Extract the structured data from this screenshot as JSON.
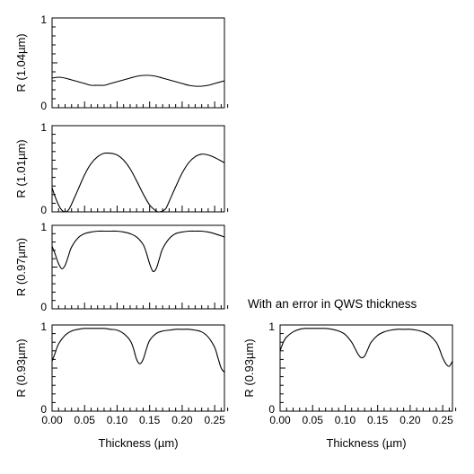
{
  "chart_data": [
    {
      "type": "line",
      "ylabel": "R (1.04µm)",
      "ylim": [
        0,
        1
      ],
      "xlim": [
        0,
        0.265
      ],
      "y_tick_labels": [
        "0",
        "1"
      ],
      "x_tick_labels": [],
      "xlabel": "",
      "grid": false,
      "series": [
        {
          "x": [
            0.0,
            0.01,
            0.02,
            0.03,
            0.04,
            0.05,
            0.06,
            0.07,
            0.08,
            0.09,
            0.1,
            0.11,
            0.12,
            0.13,
            0.14,
            0.15,
            0.16,
            0.17,
            0.18,
            0.19,
            0.2,
            0.21,
            0.22,
            0.23,
            0.24,
            0.25,
            0.265
          ],
          "y": [
            0.33,
            0.34,
            0.33,
            0.31,
            0.29,
            0.27,
            0.25,
            0.25,
            0.25,
            0.27,
            0.29,
            0.31,
            0.33,
            0.35,
            0.36,
            0.36,
            0.35,
            0.33,
            0.31,
            0.29,
            0.27,
            0.25,
            0.24,
            0.24,
            0.25,
            0.27,
            0.3
          ]
        }
      ]
    },
    {
      "type": "line",
      "ylabel": "R (1.01µm)",
      "ylim": [
        0,
        1
      ],
      "xlim": [
        0,
        0.265
      ],
      "y_tick_labels": [
        "0",
        "1"
      ],
      "x_tick_labels": [],
      "xlabel": "",
      "grid": false,
      "series": [
        {
          "x": [
            0.0,
            0.005,
            0.01,
            0.015,
            0.02,
            0.025,
            0.03,
            0.04,
            0.05,
            0.06,
            0.07,
            0.08,
            0.09,
            0.1,
            0.11,
            0.12,
            0.13,
            0.14,
            0.15,
            0.16,
            0.165,
            0.17,
            0.175,
            0.18,
            0.19,
            0.2,
            0.21,
            0.22,
            0.23,
            0.24,
            0.25,
            0.265
          ],
          "y": [
            0.28,
            0.17,
            0.08,
            0.02,
            0.0,
            0.02,
            0.09,
            0.26,
            0.43,
            0.56,
            0.64,
            0.68,
            0.68,
            0.66,
            0.6,
            0.5,
            0.36,
            0.21,
            0.08,
            0.01,
            0.0,
            0.01,
            0.04,
            0.12,
            0.29,
            0.45,
            0.57,
            0.64,
            0.67,
            0.66,
            0.63,
            0.57
          ]
        }
      ]
    },
    {
      "type": "line",
      "ylabel": "R (0.97µm)",
      "ylim": [
        0,
        1
      ],
      "xlim": [
        0,
        0.265
      ],
      "y_tick_labels": [
        "0",
        "1"
      ],
      "x_tick_labels": [],
      "xlabel": "",
      "grid": false,
      "series": [
        {
          "x": [
            0.0,
            0.005,
            0.01,
            0.015,
            0.02,
            0.025,
            0.03,
            0.04,
            0.05,
            0.06,
            0.07,
            0.08,
            0.09,
            0.1,
            0.11,
            0.12,
            0.13,
            0.14,
            0.145,
            0.15,
            0.155,
            0.16,
            0.165,
            0.17,
            0.18,
            0.19,
            0.2,
            0.21,
            0.22,
            0.23,
            0.24,
            0.25,
            0.265
          ],
          "y": [
            0.75,
            0.65,
            0.54,
            0.48,
            0.52,
            0.63,
            0.74,
            0.85,
            0.9,
            0.92,
            0.93,
            0.93,
            0.93,
            0.93,
            0.92,
            0.9,
            0.86,
            0.77,
            0.67,
            0.54,
            0.45,
            0.48,
            0.6,
            0.72,
            0.84,
            0.9,
            0.92,
            0.93,
            0.93,
            0.93,
            0.92,
            0.9,
            0.86
          ]
        }
      ]
    },
    {
      "type": "line",
      "ylabel": "R (0.93µm)",
      "ylim": [
        0,
        1
      ],
      "xlim": [
        0,
        0.265
      ],
      "y_tick_labels": [
        "0",
        "1"
      ],
      "x_tick_labels": [
        "0.00",
        "0.05",
        "0.10",
        "0.15",
        "0.20",
        "0.25"
      ],
      "xlabel": "Thickness (µm)",
      "grid": false,
      "series": [
        {
          "x": [
            0.0,
            0.005,
            0.01,
            0.02,
            0.03,
            0.04,
            0.05,
            0.06,
            0.07,
            0.08,
            0.09,
            0.1,
            0.11,
            0.12,
            0.125,
            0.13,
            0.135,
            0.14,
            0.145,
            0.15,
            0.16,
            0.17,
            0.18,
            0.19,
            0.2,
            0.21,
            0.22,
            0.23,
            0.24,
            0.25,
            0.255,
            0.26,
            0.265
          ],
          "y": [
            0.58,
            0.68,
            0.78,
            0.88,
            0.93,
            0.95,
            0.96,
            0.96,
            0.96,
            0.96,
            0.95,
            0.94,
            0.9,
            0.82,
            0.73,
            0.6,
            0.55,
            0.6,
            0.72,
            0.82,
            0.9,
            0.93,
            0.94,
            0.95,
            0.95,
            0.95,
            0.94,
            0.92,
            0.86,
            0.74,
            0.62,
            0.5,
            0.45
          ]
        }
      ]
    },
    {
      "type": "line",
      "ylabel": "R (0.93µm)",
      "ylim": [
        0,
        1
      ],
      "xlim": [
        0,
        0.265
      ],
      "y_tick_labels": [
        "0",
        "1"
      ],
      "x_tick_labels": [
        "0.00",
        "0.05",
        "0.10",
        "0.15",
        "0.20",
        "0.25"
      ],
      "xlabel": "Thickness (µm)",
      "title": "With an error in QWS thickness",
      "grid": false,
      "series": [
        {
          "x": [
            0.0,
            0.005,
            0.01,
            0.02,
            0.03,
            0.04,
            0.05,
            0.06,
            0.07,
            0.08,
            0.09,
            0.1,
            0.11,
            0.115,
            0.12,
            0.125,
            0.13,
            0.135,
            0.14,
            0.15,
            0.16,
            0.17,
            0.18,
            0.19,
            0.2,
            0.21,
            0.22,
            0.23,
            0.24,
            0.245,
            0.25,
            0.255,
            0.26,
            0.265
          ],
          "y": [
            0.7,
            0.8,
            0.86,
            0.92,
            0.95,
            0.96,
            0.96,
            0.96,
            0.96,
            0.95,
            0.93,
            0.89,
            0.8,
            0.73,
            0.66,
            0.62,
            0.64,
            0.72,
            0.8,
            0.88,
            0.92,
            0.94,
            0.95,
            0.95,
            0.95,
            0.94,
            0.92,
            0.88,
            0.8,
            0.72,
            0.62,
            0.55,
            0.52,
            0.58
          ]
        }
      ]
    }
  ]
}
